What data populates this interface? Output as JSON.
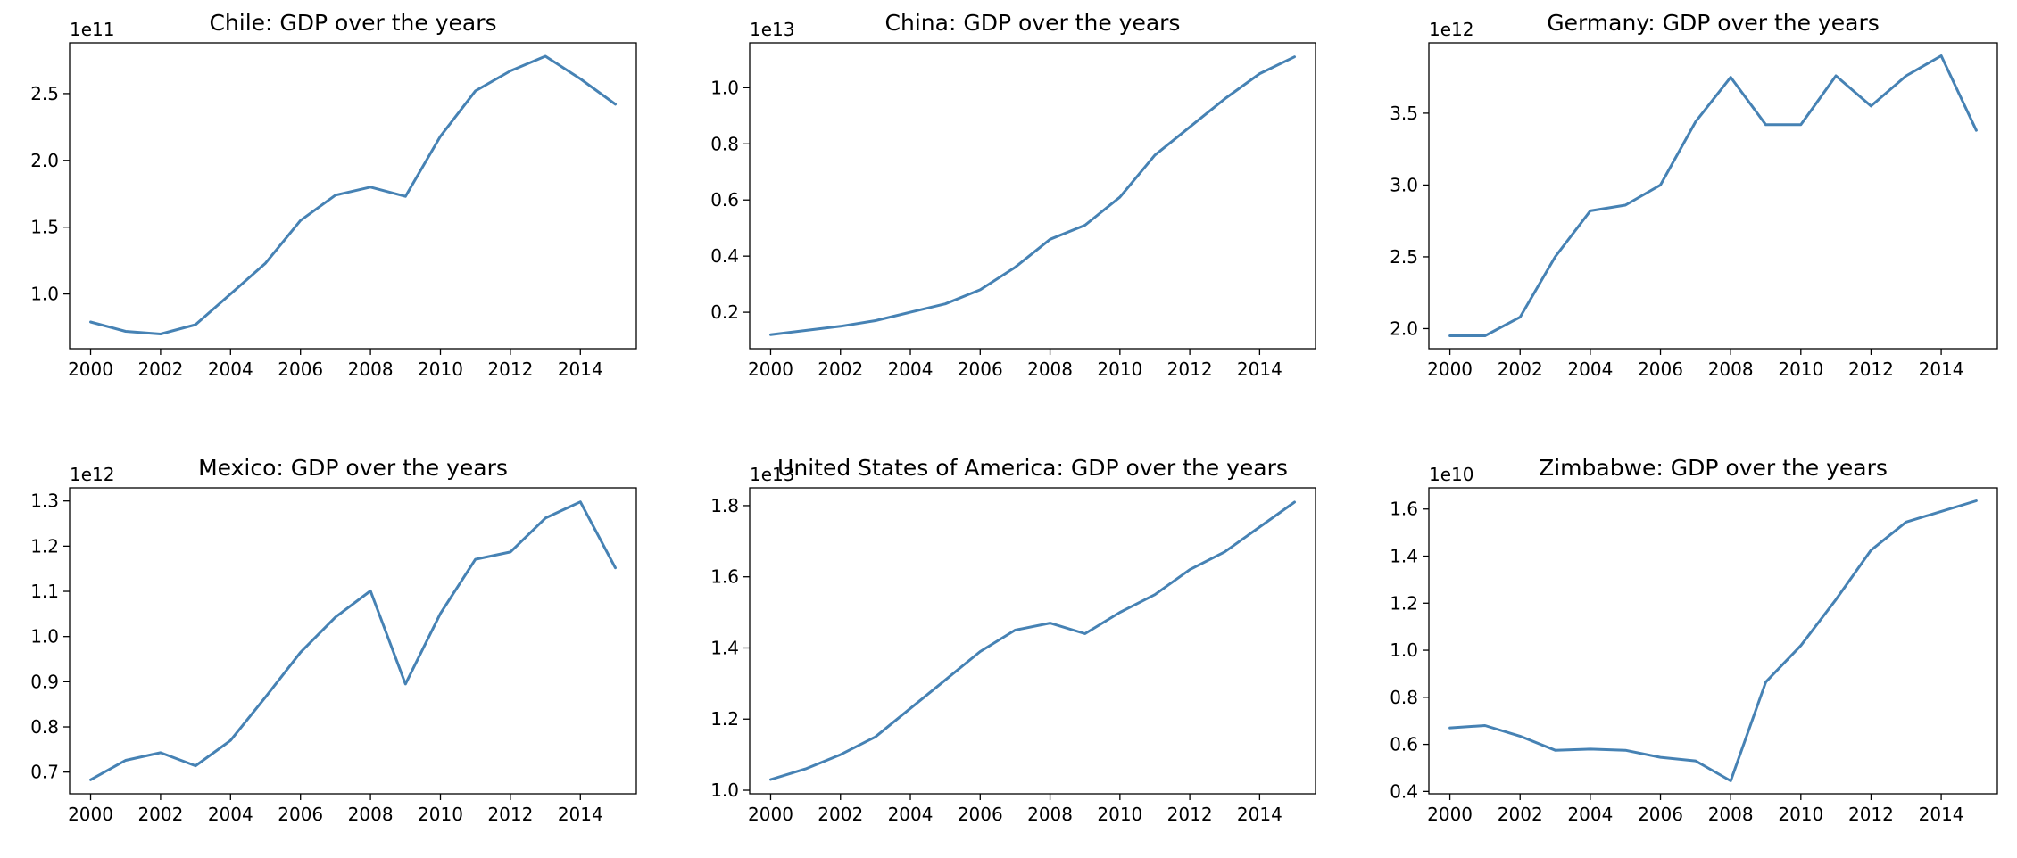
{
  "colors": {
    "line": "#4682b4",
    "axes": "#000000",
    "background": "#ffffff"
  },
  "chart_data": [
    {
      "type": "line",
      "title": "Chile: GDP over the years",
      "xlabel": "",
      "ylabel": "",
      "offset_text": "1e11",
      "x": [
        2000,
        2001,
        2002,
        2003,
        2004,
        2005,
        2006,
        2007,
        2008,
        2009,
        2010,
        2011,
        2012,
        2013,
        2014,
        2015
      ],
      "values": [
        0.79,
        0.72,
        0.7,
        0.77,
        1.0,
        1.23,
        1.55,
        1.74,
        1.8,
        1.73,
        2.18,
        2.52,
        2.67,
        2.78,
        2.61,
        2.42
      ],
      "xlim": [
        1999.4,
        2015.6
      ],
      "ylim": [
        0.59,
        2.88
      ],
      "xticks": [
        2000,
        2002,
        2004,
        2006,
        2008,
        2010,
        2012,
        2014
      ],
      "yticks": [
        1.0,
        1.5,
        2.0,
        2.5
      ],
      "ytick_labels": [
        "1.0",
        "1.5",
        "2.0",
        "2.5"
      ],
      "grid": false
    },
    {
      "type": "line",
      "title": "China: GDP over the years",
      "xlabel": "",
      "ylabel": "",
      "offset_text": "1e13",
      "x": [
        2000,
        2001,
        2002,
        2003,
        2004,
        2005,
        2006,
        2007,
        2008,
        2009,
        2010,
        2011,
        2012,
        2013,
        2014,
        2015
      ],
      "values": [
        0.12,
        0.135,
        0.15,
        0.17,
        0.2,
        0.23,
        0.28,
        0.36,
        0.46,
        0.51,
        0.61,
        0.76,
        0.86,
        0.96,
        1.05,
        1.11
      ],
      "xlim": [
        1999.4,
        2015.6
      ],
      "ylim": [
        0.07,
        1.16
      ],
      "xticks": [
        2000,
        2002,
        2004,
        2006,
        2008,
        2010,
        2012,
        2014
      ],
      "yticks": [
        0.2,
        0.4,
        0.6,
        0.8,
        1.0
      ],
      "ytick_labels": [
        "0.2",
        "0.4",
        "0.6",
        "0.8",
        "1.0"
      ],
      "grid": false
    },
    {
      "type": "line",
      "title": "Germany: GDP over the years",
      "xlabel": "",
      "ylabel": "",
      "offset_text": "1e12",
      "x": [
        2000,
        2001,
        2002,
        2003,
        2004,
        2005,
        2006,
        2007,
        2008,
        2009,
        2010,
        2011,
        2012,
        2013,
        2014,
        2015
      ],
      "values": [
        1.95,
        1.95,
        2.08,
        2.5,
        2.82,
        2.86,
        3.0,
        3.44,
        3.75,
        3.42,
        3.42,
        3.76,
        3.55,
        3.76,
        3.9,
        3.38
      ],
      "xlim": [
        1999.4,
        2015.6
      ],
      "ylim": [
        1.86,
        3.99
      ],
      "xticks": [
        2000,
        2002,
        2004,
        2006,
        2008,
        2010,
        2012,
        2014
      ],
      "yticks": [
        2.0,
        2.5,
        3.0,
        3.5
      ],
      "ytick_labels": [
        "2.0",
        "2.5",
        "3.0",
        "3.5"
      ],
      "grid": false
    },
    {
      "type": "line",
      "title": "Mexico: GDP over the years",
      "xlabel": "",
      "ylabel": "",
      "offset_text": "1e12",
      "x": [
        2000,
        2001,
        2002,
        2003,
        2004,
        2005,
        2006,
        2007,
        2008,
        2009,
        2010,
        2011,
        2012,
        2013,
        2014,
        2015
      ],
      "values": [
        0.683,
        0.726,
        0.743,
        0.714,
        0.77,
        0.866,
        0.965,
        1.043,
        1.101,
        0.895,
        1.051,
        1.171,
        1.187,
        1.262,
        1.298,
        1.152
      ],
      "xlim": [
        1999.4,
        2015.6
      ],
      "ylim": [
        0.652,
        1.329
      ],
      "xticks": [
        2000,
        2002,
        2004,
        2006,
        2008,
        2010,
        2012,
        2014
      ],
      "yticks": [
        0.7,
        0.8,
        0.9,
        1.0,
        1.1,
        1.2,
        1.3
      ],
      "ytick_labels": [
        "0.7",
        "0.8",
        "0.9",
        "1.0",
        "1.1",
        "1.2",
        "1.3"
      ],
      "grid": false
    },
    {
      "type": "line",
      "title": "United States of America: GDP over the years",
      "xlabel": "",
      "ylabel": "",
      "offset_text": "1e13",
      "x": [
        2000,
        2001,
        2002,
        2003,
        2004,
        2005,
        2006,
        2007,
        2008,
        2009,
        2010,
        2011,
        2012,
        2013,
        2014,
        2015
      ],
      "values": [
        1.03,
        1.06,
        1.1,
        1.15,
        1.23,
        1.31,
        1.39,
        1.45,
        1.47,
        1.44,
        1.5,
        1.55,
        1.62,
        1.67,
        1.74,
        1.81
      ],
      "xlim": [
        1999.4,
        2015.6
      ],
      "ylim": [
        0.99,
        1.85
      ],
      "xticks": [
        2000,
        2002,
        2004,
        2006,
        2008,
        2010,
        2012,
        2014
      ],
      "yticks": [
        1.0,
        1.2,
        1.4,
        1.6,
        1.8
      ],
      "ytick_labels": [
        "1.0",
        "1.2",
        "1.4",
        "1.6",
        "1.8"
      ],
      "grid": false
    },
    {
      "type": "line",
      "title": "Zimbabwe: GDP over the years",
      "xlabel": "",
      "ylabel": "",
      "offset_text": "1e10",
      "x": [
        2000,
        2001,
        2002,
        2003,
        2004,
        2005,
        2006,
        2007,
        2008,
        2009,
        2010,
        2011,
        2012,
        2013,
        2014,
        2015
      ],
      "values": [
        0.67,
        0.68,
        0.635,
        0.575,
        0.58,
        0.575,
        0.545,
        0.53,
        0.445,
        0.865,
        1.02,
        1.215,
        1.425,
        1.545,
        1.59,
        1.635
      ],
      "xlim": [
        1999.4,
        2015.6
      ],
      "ylim": [
        0.39,
        1.69
      ],
      "xticks": [
        2000,
        2002,
        2004,
        2006,
        2008,
        2010,
        2012,
        2014
      ],
      "yticks": [
        0.4,
        0.6,
        0.8,
        1.0,
        1.2,
        1.4,
        1.6
      ],
      "ytick_labels": [
        "0.4",
        "0.6",
        "0.8",
        "1.0",
        "1.2",
        "1.4",
        "1.6"
      ],
      "grid": false
    }
  ]
}
